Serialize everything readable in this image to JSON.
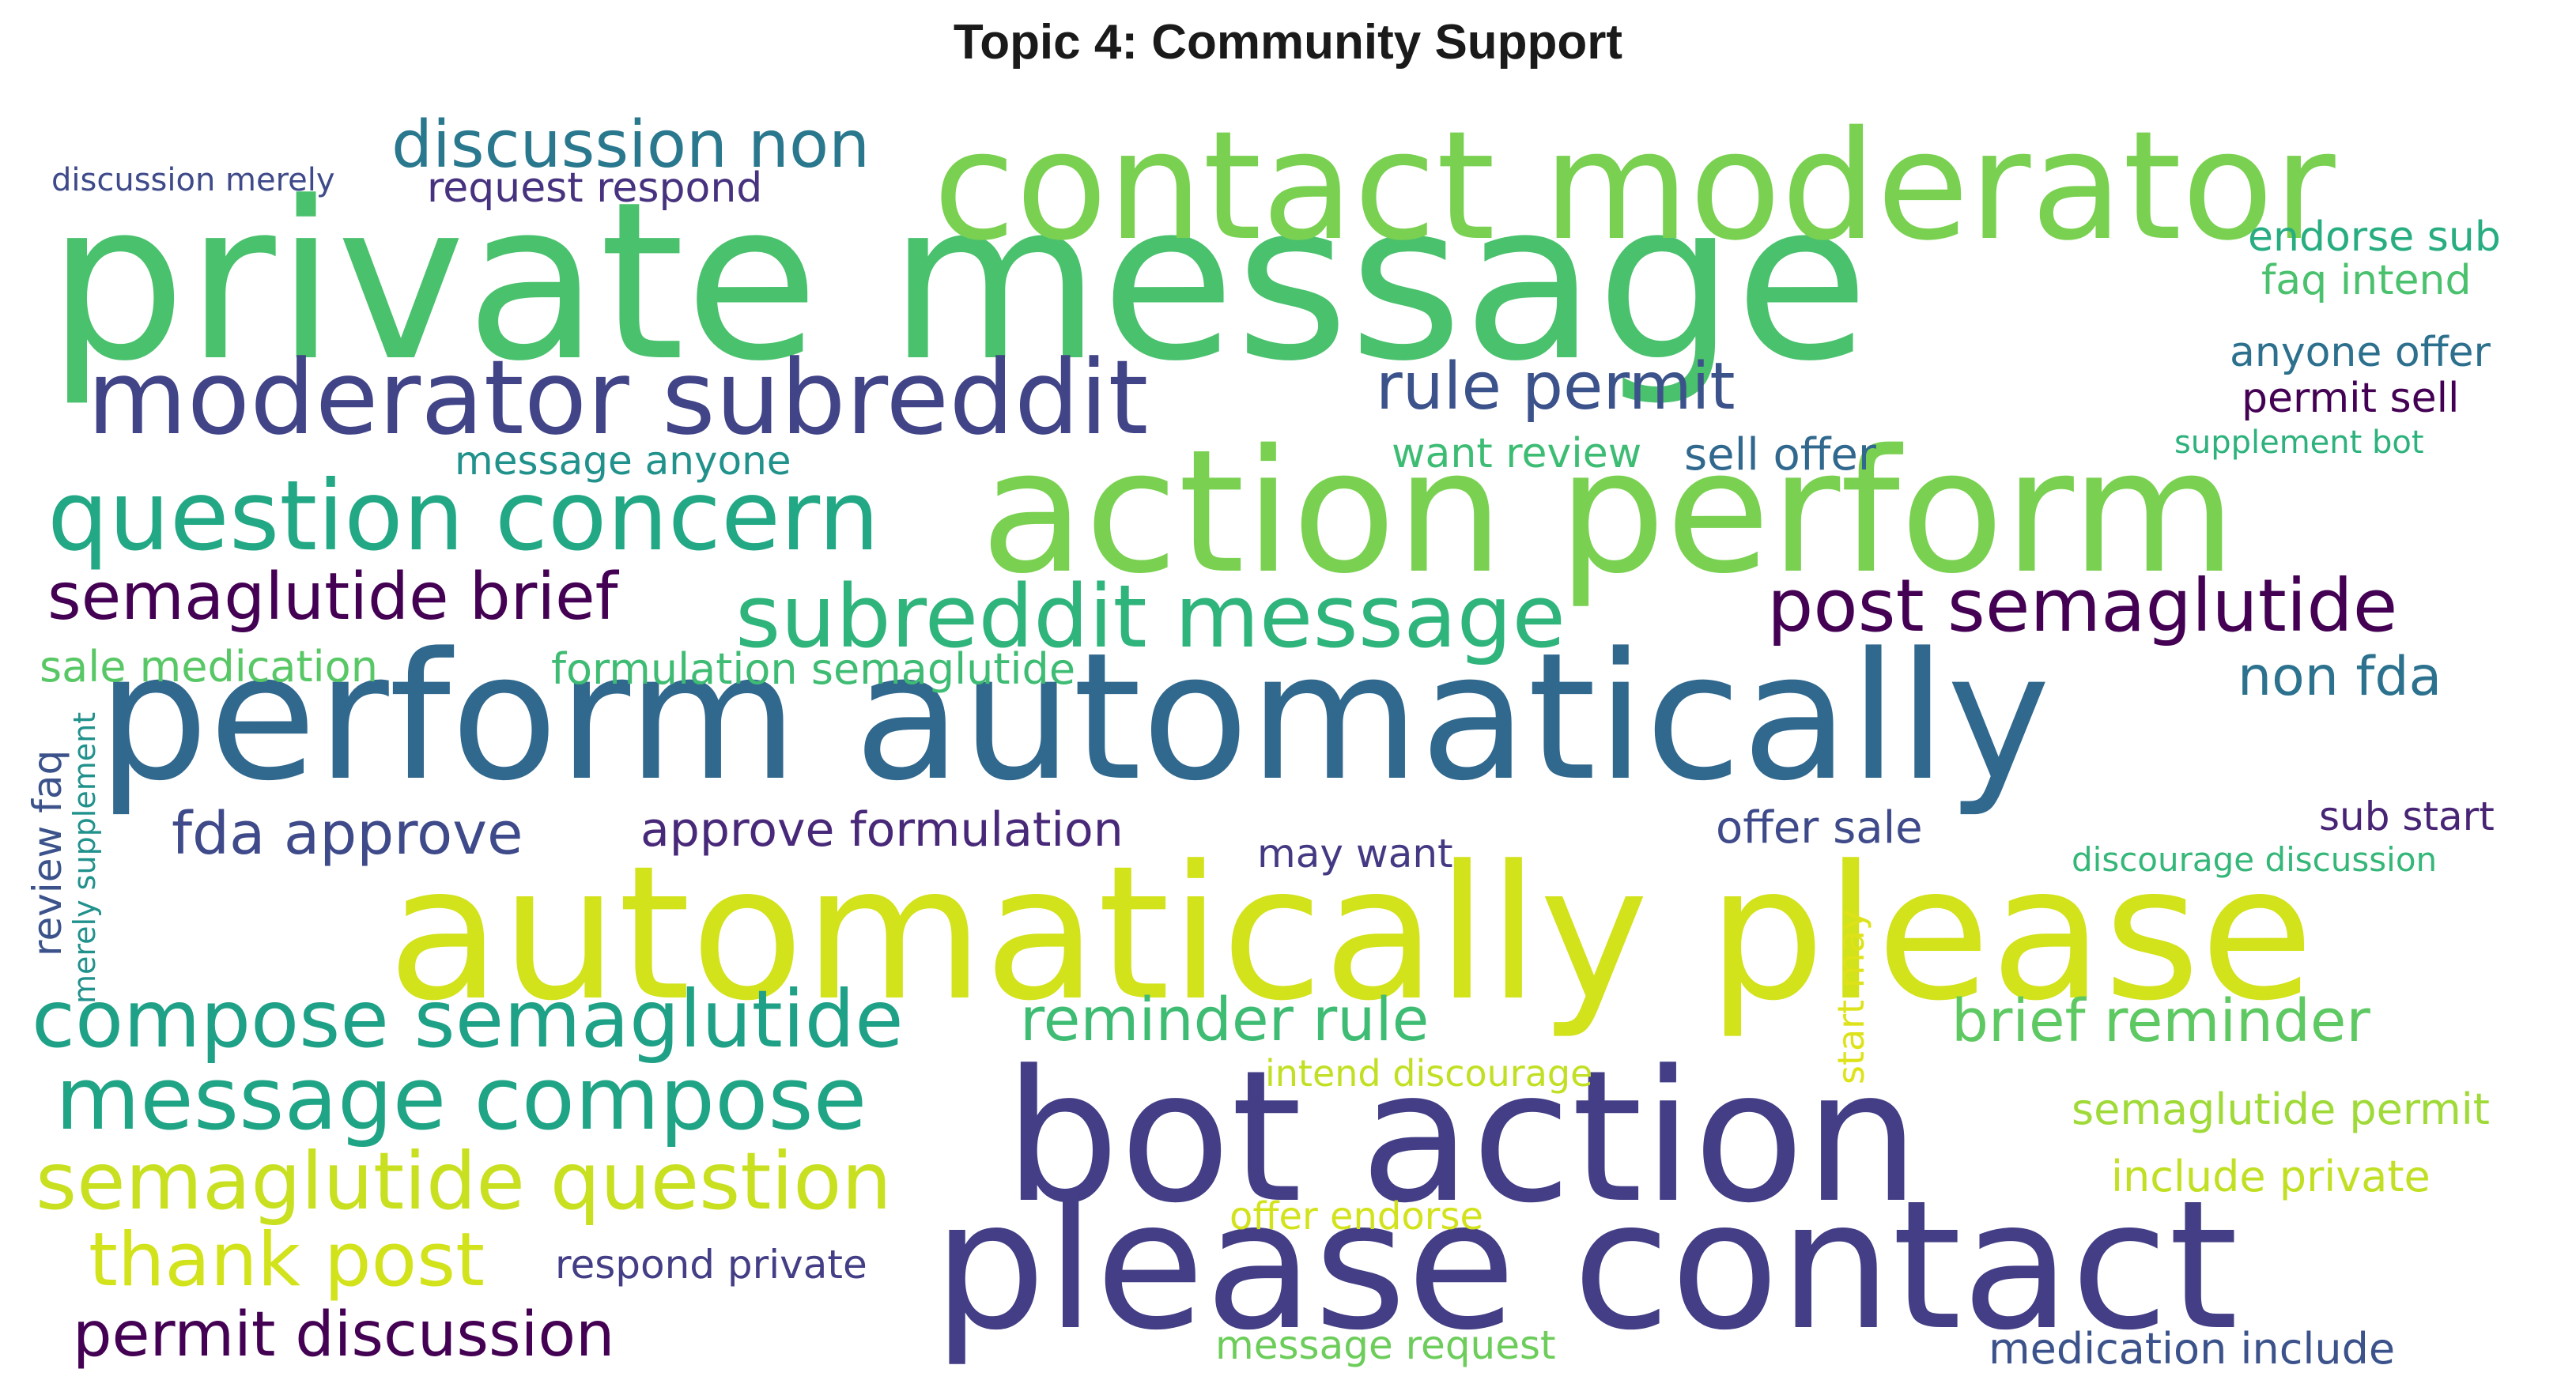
{
  "title": "Topic 4: Community Support",
  "words": [
    {
      "text": "private message",
      "color": "#4ac16d"
    },
    {
      "text": "contact moderator",
      "color": "#7ad151"
    },
    {
      "text": "action perform",
      "color": "#7ad151"
    },
    {
      "text": "perform automatically",
      "color": "#31688e"
    },
    {
      "text": "automatically please",
      "color": "#d2e21b"
    },
    {
      "text": "bot action",
      "color": "#433e85"
    },
    {
      "text": "please contact",
      "color": "#433e85"
    },
    {
      "text": "moderator subreddit",
      "color": "#414487"
    },
    {
      "text": "question concern",
      "color": "#22a884"
    },
    {
      "text": "subreddit message",
      "color": "#2fb47c"
    },
    {
      "text": "discussion non",
      "color": "#2a788e"
    },
    {
      "text": "compose semaglutide",
      "color": "#1fa187"
    },
    {
      "text": "message compose",
      "color": "#20a486"
    },
    {
      "text": "semaglutide question",
      "color": "#c8e020"
    },
    {
      "text": "post semaglutide",
      "color": "#440154"
    },
    {
      "text": "semaglutide brief",
      "color": "#440154"
    },
    {
      "text": "rule permit",
      "color": "#3b528b"
    },
    {
      "text": "thank post",
      "color": "#d2e21b"
    },
    {
      "text": "permit discussion",
      "color": "#440154"
    },
    {
      "text": "fda approve",
      "color": "#3e4a89"
    },
    {
      "text": "reminder rule",
      "color": "#3fbc73"
    },
    {
      "text": "brief reminder",
      "color": "#5ec962"
    },
    {
      "text": "non fda",
      "color": "#2c728e"
    },
    {
      "text": "approve formulation",
      "color": "#482878"
    },
    {
      "text": "formulation semaglutide",
      "color": "#3fbc73"
    },
    {
      "text": "sale medication",
      "color": "#58c765"
    },
    {
      "text": "offer sale",
      "color": "#3e4a89"
    },
    {
      "text": "may want",
      "color": "#443a83"
    },
    {
      "text": "sub start",
      "color": "#482475"
    },
    {
      "text": "discourage discussion",
      "color": "#35b779"
    },
    {
      "text": "endorse sub",
      "color": "#27ad81"
    },
    {
      "text": "faq intend",
      "color": "#4ac16d"
    },
    {
      "text": "anyone offer",
      "color": "#2d708e"
    },
    {
      "text": "permit sell",
      "color": "#440154"
    },
    {
      "text": "supplement bot",
      "color": "#2db27d"
    },
    {
      "text": "want review",
      "color": "#3dbc74"
    },
    {
      "text": "sell offer",
      "color": "#31688e"
    },
    {
      "text": "message anyone",
      "color": "#21918c"
    },
    {
      "text": "request respond",
      "color": "#46327e"
    },
    {
      "text": "discussion merely",
      "color": "#3e4a89"
    },
    {
      "text": "intend discourage",
      "color": "#c2df23"
    },
    {
      "text": "semaglutide permit",
      "color": "#a0da39"
    },
    {
      "text": "include private",
      "color": "#c2df23"
    },
    {
      "text": "offer endorse",
      "color": "#d2e21b"
    },
    {
      "text": "respond private",
      "color": "#433e85"
    },
    {
      "text": "message request",
      "color": "#6ccd5a"
    },
    {
      "text": "medication include",
      "color": "#3b528b"
    },
    {
      "text": "review faq",
      "color": "#3b528b"
    },
    {
      "text": "merely supplement",
      "color": "#21918c"
    },
    {
      "text": "start may",
      "color": "#dde318"
    }
  ]
}
